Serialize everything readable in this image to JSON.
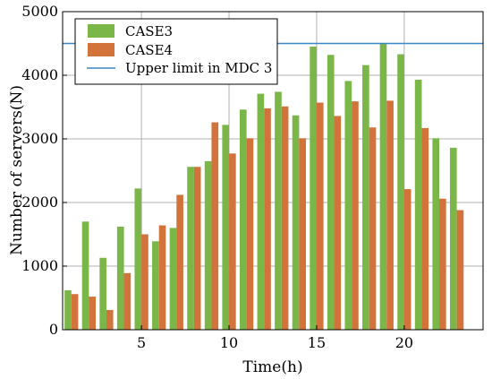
{
  "chart_data": {
    "type": "bar",
    "title": "",
    "xlabel": "Time(h)",
    "ylabel": "Number of servers(N)",
    "xlim": [
      1,
      24
    ],
    "ylim": [
      0,
      5000
    ],
    "xticks": [
      5,
      10,
      15,
      20
    ],
    "yticks": [
      0,
      1000,
      2000,
      3000,
      4000,
      5000
    ],
    "grid": true,
    "legend_position": "top-left",
    "x": [
      1,
      2,
      3,
      4,
      5,
      6,
      7,
      8,
      9,
      10,
      11,
      12,
      13,
      14,
      15,
      16,
      17,
      18,
      19,
      20,
      21,
      22,
      23
    ],
    "series": [
      {
        "name": "CASE3",
        "color": "#7ab648",
        "values": [
          620,
          1700,
          1130,
          1620,
          2220,
          1390,
          1600,
          2560,
          2650,
          3220,
          3460,
          3710,
          3740,
          3370,
          4450,
          4320,
          3910,
          4160,
          4500,
          4330,
          3930,
          3010,
          2860
        ]
      },
      {
        "name": "CASE4",
        "color": "#d2733c",
        "values": [
          560,
          520,
          310,
          890,
          1500,
          1640,
          2120,
          2560,
          3260,
          2770,
          3010,
          3480,
          3510,
          3010,
          3570,
          3360,
          3590,
          3180,
          3600,
          2210,
          3170,
          2060,
          1880
        ]
      }
    ],
    "reference_lines": [
      {
        "name": "Upper limit in MDC 3",
        "y": 4500,
        "color": "#3a87c8"
      }
    ]
  }
}
